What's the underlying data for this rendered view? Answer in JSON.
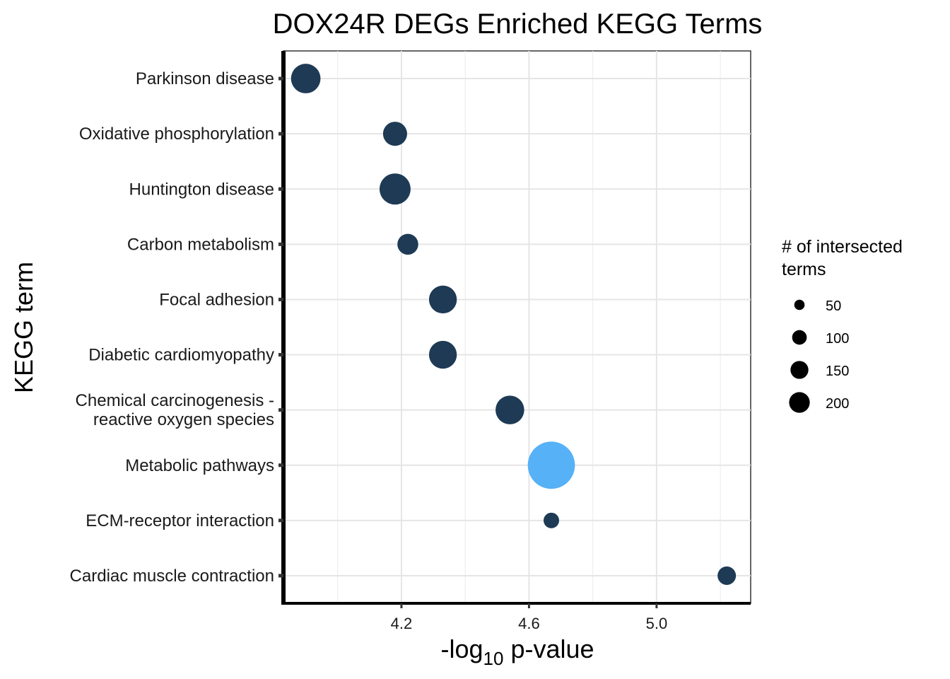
{
  "chart_data": {
    "type": "scatter",
    "title": "DOX24R DEGs Enriched KEGG Terms",
    "xlabel": {
      "pre": "-log",
      "sub": "10",
      "post": " p-value"
    },
    "ylabel": "KEGG term",
    "xlim": [
      3.83,
      5.295
    ],
    "x_ticks": [
      4.2,
      4.6,
      5.0
    ],
    "x_tick_labels": [
      "4.2",
      "4.6",
      "5.0"
    ],
    "x_minor_ticks": [
      4.0,
      4.4,
      4.8,
      5.2
    ],
    "grid": true,
    "categories": [
      [
        "Parkinson disease"
      ],
      [
        "Oxidative phosphorylation"
      ],
      [
        "Huntington disease"
      ],
      [
        "Carbon metabolism"
      ],
      [
        "Focal adhesion"
      ],
      [
        "Diabetic cardiomyopathy"
      ],
      [
        "Chemical carcinogenesis -",
        "reactive oxygen species"
      ],
      [
        "Metabolic pathways"
      ],
      [
        "ECM-receptor interaction"
      ],
      [
        "Cardiac muscle contraction"
      ]
    ],
    "points": [
      {
        "term": "Parkinson disease",
        "x": 3.9,
        "count": 90,
        "color": "#1e3a55"
      },
      {
        "term": "Oxidative phosphorylation",
        "x": 4.18,
        "count": 60,
        "color": "#1e3a55"
      },
      {
        "term": "Huntington disease",
        "x": 4.18,
        "count": 100,
        "color": "#1e3a55"
      },
      {
        "term": "Carbon metabolism",
        "x": 4.22,
        "count": 45,
        "color": "#1e3a55"
      },
      {
        "term": "Focal adhesion",
        "x": 4.33,
        "count": 80,
        "color": "#1e3a55"
      },
      {
        "term": "Diabetic cardiomyopathy",
        "x": 4.33,
        "count": 80,
        "color": "#1e3a55"
      },
      {
        "term": "Chemical carcinogenesis - reactive oxygen species",
        "x": 4.54,
        "count": 85,
        "color": "#1e3a55"
      },
      {
        "term": "Metabolic pathways",
        "x": 4.67,
        "count": 230,
        "color": "#56b1f7"
      },
      {
        "term": "ECM-receptor interaction",
        "x": 4.67,
        "count": 25,
        "color": "#1e3a55"
      },
      {
        "term": "Cardiac muscle contraction",
        "x": 5.22,
        "count": 35,
        "color": "#1e3a55"
      }
    ],
    "legend": {
      "title": [
        "# of intersected",
        " terms"
      ],
      "placement": "right",
      "sizes": [
        50,
        100,
        150,
        200
      ],
      "labels": [
        "50",
        "100",
        "150",
        "200"
      ],
      "color": "#000000"
    }
  }
}
